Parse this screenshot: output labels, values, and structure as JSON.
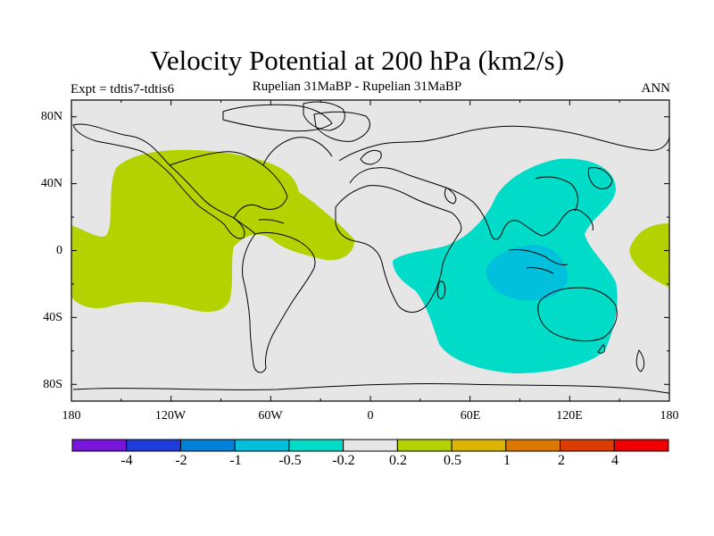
{
  "title": "Velocity Potential at 200 hPa (km2/s)",
  "expt": "Expt = tdtis7-tdtis6",
  "subtitle": "Rupelian  31MaBP - Rupelian  31MaBP",
  "season": "ANN",
  "map": {
    "background_color": "#e6e6e6",
    "lat_ticks": [
      "80N",
      "40N",
      "0",
      "40S",
      "80S"
    ],
    "lon_ticks": [
      "180",
      "120W",
      "60W",
      "0",
      "60E",
      "120E",
      "180"
    ],
    "regions": [
      {
        "name": "positive-anomaly-pacific",
        "level": "0.2 to 0.5",
        "color": "#b4d200"
      },
      {
        "name": "positive-anomaly-dateline-east",
        "level": "0.2 to 0.5",
        "color": "#b4d200"
      },
      {
        "name": "negative-anomaly-indian-ocean",
        "level": "-0.5 to -0.2",
        "color": "#00dcc8"
      },
      {
        "name": "negative-anomaly-core",
        "level": "-1 to -0.5",
        "color": "#00c0dc"
      }
    ]
  },
  "colorbar": {
    "colors": [
      "#7814dc",
      "#1e3cdc",
      "#0082dc",
      "#00c0dc",
      "#00dcc8",
      "#e6e6e6",
      "#b4d200",
      "#dcb400",
      "#dc7800",
      "#dc3c00",
      "#f00000"
    ],
    "labels": [
      "-4",
      "-2",
      "-1",
      "-0.5",
      "-0.2",
      "0.2",
      "0.5",
      "1",
      "2",
      "4"
    ]
  }
}
